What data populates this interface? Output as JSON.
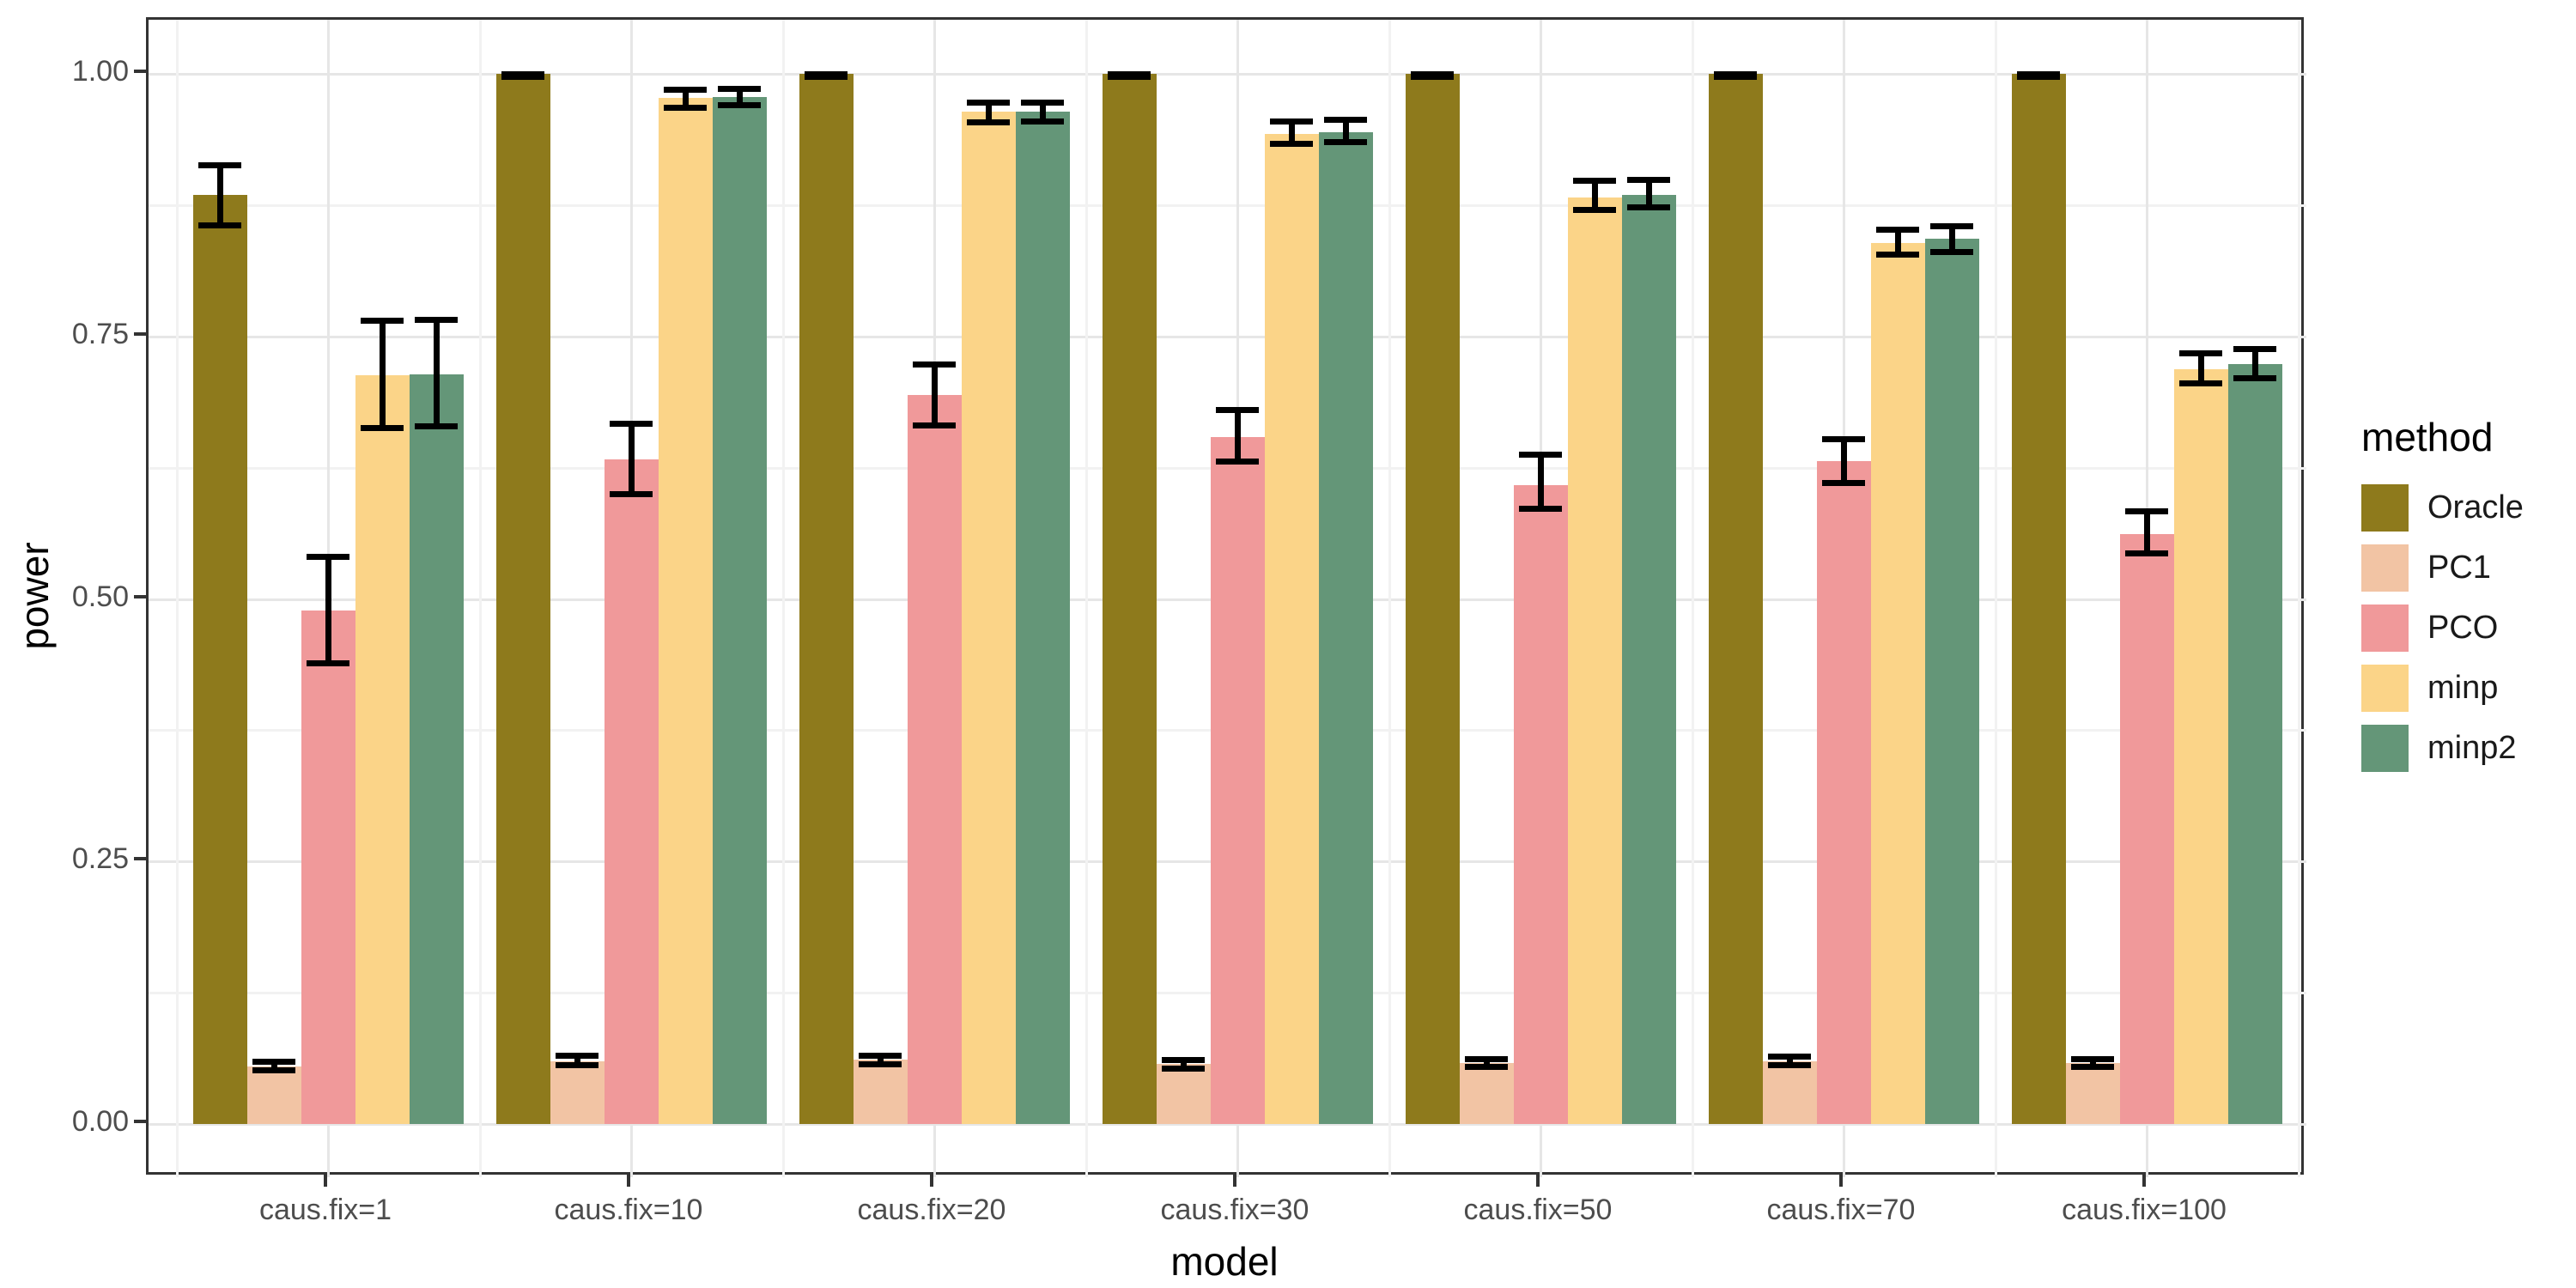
{
  "chart_data": {
    "type": "bar",
    "title": "",
    "xlabel": "model",
    "ylabel": "power",
    "legend_title": "method",
    "legend_position": "right",
    "grid": "on",
    "ylim": [
      0,
      1.05
    ],
    "categories": [
      "caus.fix=1",
      "caus.fix=10",
      "caus.fix=20",
      "caus.fix=30",
      "caus.fix=50",
      "caus.fix=70",
      "caus.fix=100"
    ],
    "yticks": [
      {
        "value": 0.0,
        "label": "0.00"
      },
      {
        "value": 0.25,
        "label": "0.25"
      },
      {
        "value": 0.5,
        "label": "0.50"
      },
      {
        "value": 0.75,
        "label": "0.75"
      },
      {
        "value": 1.0,
        "label": "1.00"
      }
    ],
    "minor_yticks": [
      0.125,
      0.375,
      0.625,
      0.875
    ],
    "series": [
      {
        "name": "Oracle",
        "color": "#8E7A1C",
        "values": [
          0.885,
          1.0,
          1.0,
          1.0,
          1.0,
          1.0,
          1.0
        ],
        "err_low": [
          0.856,
          0.997,
          0.997,
          0.997,
          0.997,
          0.997,
          0.997
        ],
        "err_high": [
          0.913,
          1.0,
          1.0,
          1.0,
          1.0,
          1.0,
          1.0
        ]
      },
      {
        "name": "PC1",
        "color": "#F2C4A4",
        "values": [
          0.055,
          0.06,
          0.061,
          0.057,
          0.058,
          0.06,
          0.058
        ],
        "err_low": [
          0.051,
          0.056,
          0.057,
          0.053,
          0.054,
          0.056,
          0.054
        ],
        "err_high": [
          0.059,
          0.065,
          0.065,
          0.061,
          0.062,
          0.064,
          0.062
        ]
      },
      {
        "name": "PCO",
        "color": "#F0999A",
        "values": [
          0.489,
          0.633,
          0.694,
          0.654,
          0.608,
          0.631,
          0.562
        ],
        "err_low": [
          0.439,
          0.6,
          0.665,
          0.631,
          0.586,
          0.61,
          0.543
        ],
        "err_high": [
          0.54,
          0.667,
          0.723,
          0.68,
          0.637,
          0.652,
          0.583
        ]
      },
      {
        "name": "minp",
        "color": "#FBD488",
        "values": [
          0.713,
          0.977,
          0.964,
          0.943,
          0.882,
          0.839,
          0.719
        ],
        "err_low": [
          0.663,
          0.968,
          0.954,
          0.933,
          0.87,
          0.828,
          0.705
        ],
        "err_high": [
          0.765,
          0.985,
          0.973,
          0.955,
          0.898,
          0.852,
          0.734
        ]
      },
      {
        "name": "minp2",
        "color": "#649678",
        "values": [
          0.714,
          0.978,
          0.964,
          0.944,
          0.885,
          0.843,
          0.724
        ],
        "err_low": [
          0.664,
          0.97,
          0.955,
          0.935,
          0.873,
          0.83,
          0.71
        ],
        "err_high": [
          0.766,
          0.986,
          0.973,
          0.956,
          0.899,
          0.855,
          0.738
        ]
      }
    ],
    "colors": {
      "panel_background": "#FFFFFF",
      "panel_border": "#333333",
      "grid_major": "#E6E6E6",
      "grid_minor": "#F2F2F2",
      "error_bar": "#000000",
      "tick_text": "#4D4D4D",
      "title_text": "#000000"
    }
  }
}
